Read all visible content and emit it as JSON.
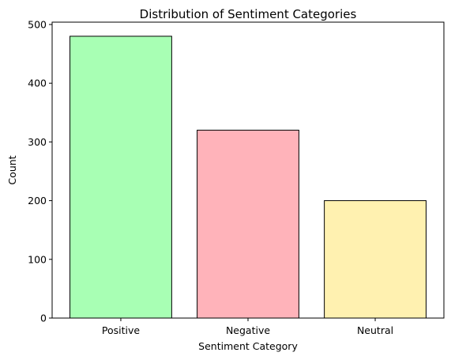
{
  "chart_data": {
    "type": "bar",
    "title": "Distribution of Sentiment Categories",
    "xlabel": "Sentiment Category",
    "ylabel": "Count",
    "categories": [
      "Positive",
      "Negative",
      "Neutral"
    ],
    "values": [
      480,
      320,
      200
    ],
    "colors": [
      "#a8ffb4",
      "#ffb3ba",
      "#fff1b0"
    ],
    "edge_color": "#000000",
    "ylim": [
      0,
      504
    ],
    "yticks": [
      0,
      100,
      200,
      300,
      400,
      500
    ],
    "grid": false,
    "legend": "none"
  }
}
